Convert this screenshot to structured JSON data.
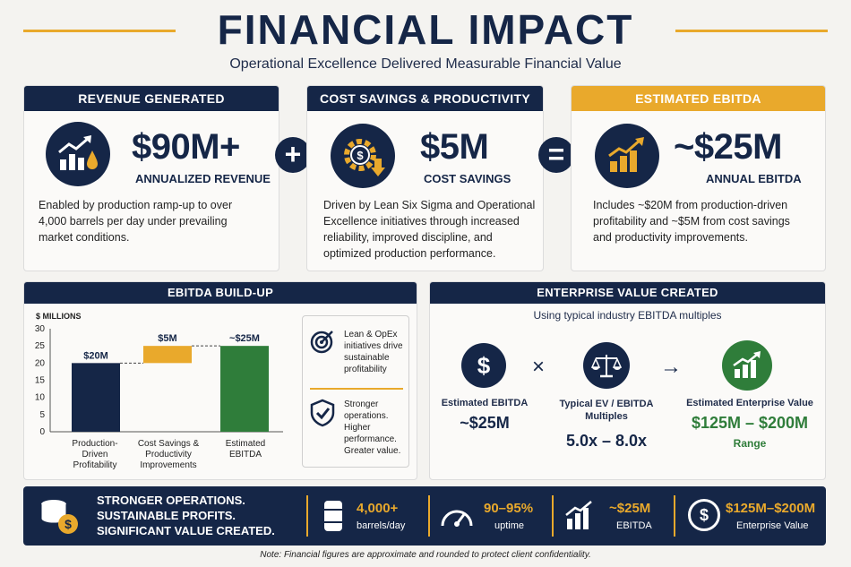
{
  "header": {
    "title": "FINANCIAL IMPACT",
    "subtitle": "Operational Excellence Delivered Measurable Financial Value"
  },
  "cards": [
    {
      "heading": "REVENUE GENERATED",
      "value": "$90M+",
      "caption": "ANNUALIZED REVENUE",
      "description": "Enabled by production ramp-up to over 4,000 barrels per day under prevailing market conditions.",
      "icon": "growth-chart-oil-drop-icon"
    },
    {
      "heading": "COST SAVINGS & PRODUCTIVITY",
      "value": "$5M",
      "caption": "COST SAVINGS",
      "description": "Driven by Lean Six Sigma and Operational Excellence initiatives through increased reliability, improved discipline, and optimized production performance.",
      "icon": "gear-dollar-icon"
    },
    {
      "heading": "ESTIMATED EBITDA",
      "value": "~$25M",
      "caption": "ANNUAL EBITDA",
      "description": "Includes ~$20M from production-driven profitability and ~$5M from cost savings and productivity improvements.",
      "icon": "bar-chart-arrow-icon"
    }
  ],
  "operators": {
    "plus": "+",
    "equals": "="
  },
  "ebitda_buildup": {
    "heading": "EBITDA BUILD-UP",
    "side_notes": [
      {
        "text": "Lean & OpEx initiatives drive sustainable profitability",
        "icon": "target-icon"
      },
      {
        "text": "Stronger operations. Higher performance. Greater value.",
        "icon": "shield-check-icon"
      }
    ]
  },
  "chart_data": {
    "type": "bar",
    "ylabel": "$ MILLIONS",
    "ylim": [
      0,
      30
    ],
    "yticks": [
      0,
      5,
      10,
      15,
      20,
      25,
      30
    ],
    "categories": [
      "Production-Driven Profitability",
      "Cost Savings & Productivity Improvements",
      "Estimated EBITDA"
    ],
    "bars": [
      {
        "label": "$20M",
        "base": 0,
        "value": 20,
        "color": "#152647"
      },
      {
        "label": "$5M",
        "base": 20,
        "value": 5,
        "color": "#e9a92c"
      },
      {
        "label": "~$25M",
        "base": 0,
        "value": 25,
        "color": "#2f7d3a"
      }
    ]
  },
  "enterprise_value": {
    "heading": "ENTERPRISE VALUE CREATED",
    "subheading": "Using typical industry EBITDA multiples",
    "times": "×",
    "arrow": "→",
    "items": [
      {
        "label": "Estimated EBITDA",
        "value": "~$25M",
        "icon": "dollar-icon"
      },
      {
        "label": "Typical EV / EBITDA Multiples",
        "value": "5.0x – 8.0x",
        "icon": "scale-icon"
      },
      {
        "label": "Estimated Enterprise Value",
        "value": "$125M – $200M",
        "sub": "Range",
        "icon": "growth-chart-icon"
      }
    ]
  },
  "footer": {
    "tagline": [
      "STRONGER OPERATIONS.",
      "SUSTAINABLE PROFITS.",
      "SIGNIFICANT VALUE CREATED."
    ],
    "stats": [
      {
        "value": "4,000+",
        "label": "barrels/day",
        "icon": "barrel-icon"
      },
      {
        "value": "90–95%",
        "label": "uptime",
        "icon": "gauge-icon"
      },
      {
        "value": "~$25M",
        "label": "EBITDA",
        "icon": "bar-chart-icon"
      },
      {
        "value": "$125M–$200M",
        "label": "Enterprise Value",
        "icon": "dollar-circle-icon"
      }
    ]
  },
  "note": "Note: Financial figures are approximate and rounded to protect client confidentiality.",
  "colors": {
    "navy": "#152647",
    "gold": "#e9a92c",
    "green": "#2f7d3a"
  }
}
